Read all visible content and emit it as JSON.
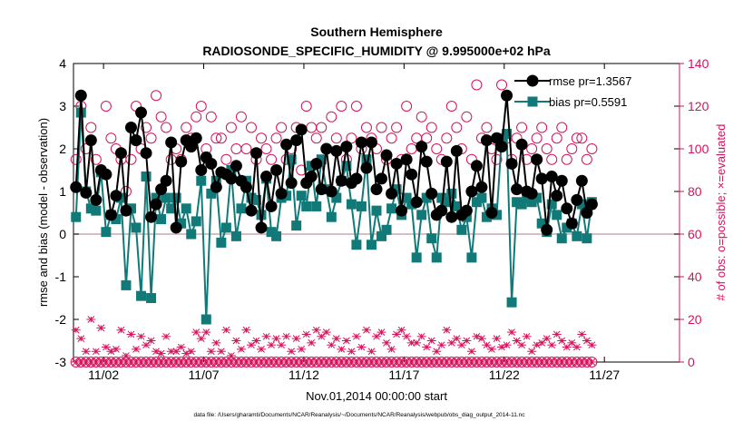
{
  "figure": {
    "title_line1": "Southern Hemisphere",
    "title_line2": "RADIOSONDE_SPECIFIC_HUMIDITY @ 9.995000e+02 hPa",
    "xlabel": "Nov.01,2014 00:00:00 start",
    "ylabel_left": "rmse and bias (model - observation)",
    "ylabel_right": "# of obs: o=possible; ×=evaluated",
    "footnote": "data file: /Users/gharamti/Documents/NCAR/Reanalysis/~/Documents/NCAR/Reanalysis/webpub/obs_diag_output_2014-11.nc",
    "colors": {
      "rmse": "#000000",
      "bias": "#117a78",
      "obs": "#d6125b",
      "axes": "#000000",
      "zero_line": "#c9a9b2"
    }
  },
  "chart_data": {
    "type": "line",
    "title": "Southern Hemisphere — RADIOSONDE_SPECIFIC_HUMIDITY @ 9.995000e+02 hPa",
    "xlabel": "Nov.01,2014 00:00:00 start",
    "ylabel": "rmse and bias (model - observation)",
    "y2label": "# of obs: o=possible; ×=evaluated",
    "xlim": [
      0.5,
      30.75
    ],
    "ylim": [
      -3,
      4
    ],
    "y2lim": [
      0,
      140
    ],
    "x_ticks": [
      {
        "x": 2,
        "label": "11/02"
      },
      {
        "x": 7,
        "label": "11/07"
      },
      {
        "x": 12,
        "label": "11/12"
      },
      {
        "x": 17,
        "label": "11/17"
      },
      {
        "x": 22,
        "label": "11/22"
      },
      {
        "x": 27,
        "label": "11/27"
      }
    ],
    "y_ticks": [
      -3,
      -2,
      -1,
      0,
      1,
      2,
      3,
      4
    ],
    "y2_ticks": [
      0,
      20,
      40,
      60,
      80,
      100,
      120,
      140
    ],
    "x_start": 0.625,
    "x_step": 0.25,
    "series": [
      {
        "name": "rmse pr=1.3567",
        "marker": "filled-circle",
        "values": [
          1.1,
          3.25,
          0.97,
          2.2,
          0.8,
          1.5,
          1.4,
          0.45,
          0.9,
          1.9,
          0.55,
          2.5,
          2.2,
          2.85,
          1.9,
          0.4,
          0.7,
          1.05,
          1.25,
          2.15,
          0.15,
          1.7,
          2.2,
          2.05,
          2.25,
          1.5,
          1.8,
          1.65,
          1.1,
          1.45,
          1.4,
          1.3,
          1.6,
          1.25,
          1.1,
          0.55,
          1.9,
          0.15,
          1.35,
          0.65,
          1.5,
          0.95,
          2.1,
          1.2,
          2.2,
          2.45,
          1.2,
          1.35,
          1.65,
          1.05,
          2.0,
          1.0,
          1.95,
          1.25,
          2.05,
          1.2,
          1.3,
          2.15,
          1.55,
          2.15,
          1.05,
          1.3,
          1.85,
          0.95,
          1.65,
          0.55,
          1.75,
          1.4,
          0.75,
          2.05,
          1.7,
          0.95,
          0.45,
          0.55,
          1.7,
          0.4,
          1.95,
          0.45,
          0.55,
          1.0,
          1.6,
          1.1,
          2.2,
          0.5,
          2.25,
          2.05,
          3.25,
          1.65,
          1.05,
          2.1,
          1.0,
          0.95,
          1.75,
          1.3,
          0.1,
          1.35,
          0.9,
          1.25,
          0.6,
          0.25,
          0.8,
          1.25,
          0.5,
          0.7
        ]
      },
      {
        "name": "bias pr=0.5591",
        "marker": "filled-square",
        "values": [
          0.4,
          2.85,
          1.0,
          0.6,
          0.55,
          1.45,
          0.05,
          0.45,
          0.35,
          0.85,
          -1.2,
          0.6,
          0.15,
          -1.45,
          1.35,
          -1.5,
          0.85,
          0.35,
          0.85,
          0.6,
          0.85,
          0.25,
          0.6,
          0.0,
          0.3,
          1.25,
          -2.0,
          0.95,
          1.25,
          -0.2,
          0.15,
          1.5,
          -0.05,
          0.6,
          1.25,
          0.85,
          0.8,
          0.45,
          1.3,
          0.05,
          -0.05,
          0.85,
          0.9,
          1.75,
          0.2,
          0.9,
          0.65,
          1.6,
          0.65,
          1.75,
          1.05,
          0.4,
          0.85,
          1.25,
          1.6,
          0.7,
          -0.25,
          0.65,
          1.75,
          -0.25,
          0.55,
          -0.05,
          0.1,
          0.6,
          1.05,
          0.45,
          0.85,
          0.7,
          -0.55,
          0.45,
          0.85,
          -0.1,
          -0.55,
          0.85,
          0.75,
          0.95,
          0.65,
          0.1,
          0.4,
          -0.55,
          0.75,
          0.85,
          0.4,
          0.6,
          0.45,
          2.25,
          2.35,
          -1.6,
          0.75,
          0.7,
          0.85,
          0.75,
          0.85,
          0.25,
          0.05,
          0.7,
          0.45,
          -0.1,
          0.15,
          0.25,
          -0.05,
          0.7,
          -0.1,
          0.75
        ]
      },
      {
        "name": "possible obs",
        "axis": "right",
        "marker": "open-circle",
        "values": [
          95,
          120,
          100,
          110,
          95,
          90,
          120,
          105,
          100,
          95,
          80,
          95,
          120,
          100,
          110,
          105,
          125,
          115,
          110,
          95,
          100,
          95,
          110,
          105,
          115,
          120,
          100,
          115,
          105,
          105,
          95,
          110,
          100,
          115,
          100,
          110,
          95,
          105,
          100,
          95,
          105,
          110,
          95,
          100,
          110,
          90,
          120,
          110,
          105,
          110,
          100,
          115,
          105,
          120,
          95,
          105,
          120,
          100,
          110,
          105,
          100,
          110,
          95,
          105,
          110,
          95,
          120,
          100,
          105,
          115,
          105,
          110,
          100,
          95,
          105,
          120,
          110,
          100,
          115,
          95,
          130,
          105,
          110,
          100,
          95,
          130,
          105,
          95,
          105,
          110,
          95,
          100,
          105,
          110,
          100,
          95,
          105,
          110,
          95,
          100,
          105,
          105,
          95,
          100
        ]
      },
      {
        "name": "evaluated obs",
        "axis": "right",
        "marker": "cross",
        "values": [
          15,
          11,
          5,
          20,
          5,
          16,
          7,
          5,
          6,
          15,
          3,
          13,
          6,
          12,
          8,
          10,
          5,
          4,
          12,
          5,
          5,
          7,
          4,
          5,
          14,
          11,
          14,
          5,
          9,
          5,
          15,
          3,
          10,
          6,
          15,
          8,
          10,
          6,
          12,
          8,
          11,
          8,
          12,
          5,
          11,
          6,
          13,
          9,
          15,
          12,
          14,
          8,
          11,
          6,
          10,
          5,
          12,
          7,
          15,
          5,
          12,
          14,
          9,
          6,
          13,
          15,
          12,
          9,
          9,
          12,
          7,
          10,
          5,
          8,
          15,
          9,
          11,
          8,
          10,
          5,
          12,
          11,
          8,
          6,
          11,
          7,
          8,
          14,
          10,
          8,
          12,
          5,
          8,
          9,
          11,
          8,
          13,
          10,
          7,
          9,
          7,
          13,
          10,
          8
        ]
      }
    ],
    "legend": {
      "location": "top-right",
      "entries": [
        "rmse pr=1.3567",
        "bias pr=0.5591"
      ]
    }
  }
}
